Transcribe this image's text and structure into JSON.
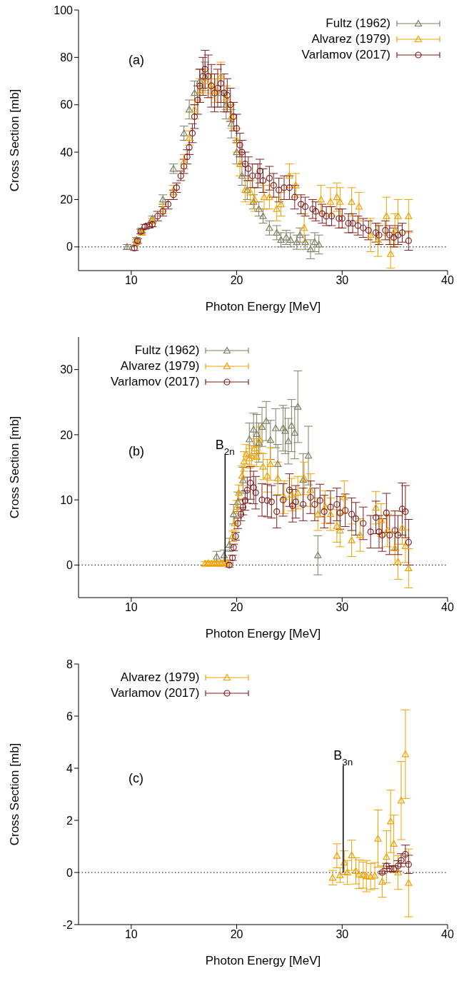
{
  "chart_data": [
    {
      "type": "scatter",
      "xlabel": "Photon Energy [MeV]",
      "ylabel": "Cross Section [mb]",
      "xlim": [
        5,
        40
      ],
      "xticks": [
        10,
        20,
        30,
        40
      ],
      "ylim": [
        -10,
        100
      ],
      "yticks": [
        0,
        20,
        40,
        60,
        80,
        100
      ],
      "legend": "top right",
      "annotations": [
        "(a)"
      ],
      "ref_lines": [
        {
          "axis": "y",
          "value": 0,
          "line_style": "dotted",
          "color": "#000000"
        }
      ],
      "series": [
        {
          "name": "Fultz (1962)",
          "color": "#7d8063",
          "marker": "triangle",
          "x": [
            9.6,
            10.5,
            11,
            12,
            13,
            14,
            15,
            15.5,
            16,
            16.5,
            17,
            17.5,
            18,
            18.5,
            19,
            19.5,
            20,
            20.5,
            21,
            21.6,
            22.1,
            22.5,
            23.1,
            23.8,
            24.2,
            24.7,
            25.1,
            25.7,
            26,
            26.5,
            27,
            27.4,
            27.8
          ],
          "values": [
            0,
            3,
            7,
            12,
            20,
            33,
            48,
            58,
            65,
            70,
            72,
            null,
            null,
            65,
            60,
            52,
            40,
            30,
            24,
            19,
            16,
            13,
            8,
            6,
            3,
            4,
            3,
            2,
            5,
            2,
            -1,
            2,
            1
          ],
          "errors": [
            1,
            1,
            1,
            1,
            2,
            2,
            3,
            4,
            5,
            5,
            6,
            null,
            null,
            6,
            6,
            6,
            5,
            4,
            4,
            3,
            3,
            3,
            3,
            3,
            3,
            3,
            3,
            3,
            3,
            3,
            4,
            4,
            4
          ]
        },
        {
          "name": "Alvarez (1979)",
          "color": "#f0a000",
          "marker": "triangle",
          "x": [
            10.5,
            11,
            12,
            13,
            14,
            15,
            15.5,
            16,
            16.5,
            17,
            17.5,
            18,
            18.5,
            19,
            19.5,
            20,
            20.3,
            20.8,
            21.3,
            21.7,
            22.6,
            23.1,
            23.8,
            24.2,
            25,
            25.6,
            26.4,
            28,
            28.9,
            29.5,
            29.8,
            30.9,
            31.6,
            32.7,
            33.4,
            34.2,
            34.6,
            35,
            35.3,
            36.3
          ],
          "values": [
            2,
            6,
            11,
            16,
            24,
            36,
            46,
            58,
            66,
            70,
            68,
            66,
            72,
            63,
            55,
            45,
            35,
            24,
            23,
            20,
            21,
            21,
            16,
            18,
            30,
            26,
            8,
            20,
            19,
            21,
            19,
            19,
            17,
            5,
            3,
            13,
            -3,
            7,
            13,
            13
          ],
          "errors": [
            1,
            1,
            1,
            2,
            2,
            3,
            3,
            4,
            5,
            5,
            5,
            5,
            6,
            5,
            5,
            5,
            5,
            5,
            5,
            5,
            5,
            5,
            5,
            5,
            5,
            5,
            6,
            6,
            6,
            6,
            6,
            6,
            6,
            7,
            7,
            8,
            6,
            7,
            7,
            7
          ]
        },
        {
          "name": "Varlamov (2017)",
          "color": "#7f1f1f",
          "marker": "circle",
          "x": [
            10.3,
            10.6,
            10.9,
            11.3,
            11.7,
            12,
            12.5,
            13,
            13.5,
            14,
            14.3,
            14.7,
            15,
            15.3,
            15.5,
            15.8,
            16,
            16.3,
            16.5,
            16.8,
            17,
            17.3,
            17.6,
            17.9,
            18.2,
            18.5,
            18.8,
            19.1,
            19.4,
            19.7,
            20,
            20.3,
            20.5,
            20.8,
            21.1,
            21.5,
            22,
            22.2,
            22.5,
            23.1,
            23.5,
            24,
            24.5,
            25,
            25.5,
            26.1,
            26.5,
            27.2,
            27.5,
            28.1,
            28.5,
            29,
            29.7,
            30,
            30.6,
            31,
            31.5,
            32,
            32.5,
            33.2,
            33.5,
            34.1,
            34.5,
            34.9,
            35.3,
            35.7,
            36.3
          ],
          "values": [
            -0.5,
            2.5,
            6.5,
            8.5,
            9,
            9.5,
            13,
            15,
            18,
            22,
            25,
            30,
            34,
            38,
            42,
            48,
            55,
            62,
            68,
            72,
            75,
            72,
            68,
            65,
            67,
            69,
            65,
            64,
            60,
            55,
            50,
            43,
            40,
            35,
            33,
            30,
            30,
            32,
            28,
            29,
            26,
            24,
            25,
            25,
            21,
            18,
            17,
            16,
            15,
            14,
            13,
            13,
            12,
            12,
            10,
            10,
            9,
            8,
            7,
            6,
            5,
            7,
            5,
            4,
            5,
            6,
            2.6
          ],
          "errors": [
            1,
            1,
            1,
            1,
            1,
            1,
            2,
            2,
            2,
            2,
            2,
            2,
            3,
            3,
            3,
            4,
            5,
            6,
            7,
            8,
            8,
            9,
            9,
            8,
            8,
            8,
            8,
            7,
            7,
            6,
            6,
            5,
            5,
            5,
            5,
            5,
            5,
            5,
            5,
            5,
            5,
            5,
            5,
            5,
            5,
            4,
            4,
            4,
            4,
            4,
            4,
            4,
            4,
            4,
            4,
            4,
            4,
            4,
            4,
            4,
            4,
            4,
            4,
            4,
            4,
            4,
            4
          ]
        }
      ]
    },
    {
      "type": "scatter",
      "xlabel": "Photon Energy [MeV]",
      "ylabel": "Cross Section [mb]",
      "xlim": [
        5,
        40
      ],
      "xticks": [
        10,
        20,
        30,
        40
      ],
      "ylim": [
        -5,
        35
      ],
      "yticks": [
        0,
        10,
        20,
        30
      ],
      "legend": "top left",
      "annotations": [
        "(b)",
        {
          "text": "B$_{2n}$",
          "x": 18.9,
          "y": 0.5
        }
      ],
      "ref_lines": [
        {
          "axis": "y",
          "value": 0,
          "line_style": "dotted",
          "color": "#000000"
        }
      ],
      "series": [
        {
          "name": "Fultz (1962)",
          "color": "#7d8063",
          "marker": "triangle",
          "x": [
            18.1,
            18.8,
            19.3,
            19.7,
            20.1,
            20.6,
            21.2,
            21.6,
            21.9,
            22.1,
            22.4,
            22.8,
            23.2,
            23.7,
            23.9,
            24.4,
            24.6,
            24.9,
            25.2,
            25.5,
            25.8,
            26.3,
            26.8,
            27.7
          ],
          "values": [
            1.3,
            1.5,
            3.1,
            7.8,
            9.7,
            13,
            19.3,
            20.8,
            20.1,
            18.8,
            21.2,
            22.1,
            19.2,
            21,
            15.5,
            21,
            20.6,
            19,
            21.4,
            20.3,
            24.3,
            13.1,
            16.8,
            1.5
          ],
          "errors": [
            0.8,
            0.8,
            1,
            1.5,
            1.5,
            2,
            2.5,
            2.5,
            3,
            3,
            3,
            3,
            3,
            3,
            3,
            3.5,
            3.5,
            3.5,
            4,
            4,
            5.5,
            4,
            4.5,
            3
          ]
        },
        {
          "name": "Alvarez (1979)",
          "color": "#f0a000",
          "marker": "triangle",
          "x": [
            17,
            17.3,
            17.6,
            17.9,
            18.2,
            18.5,
            18.8,
            19.1,
            19.6,
            19.8,
            20,
            20.2,
            20.5,
            20.7,
            20.9,
            21.2,
            21.4,
            21.7,
            21.9,
            22.2,
            22.5,
            22.9,
            23.2,
            23.9,
            24.5,
            25.2,
            25.8,
            26.4,
            27,
            27.7,
            28.4,
            28.9,
            29.5,
            29.8,
            30.2,
            30.9,
            31.7,
            33.2,
            33.7,
            34.3,
            35,
            35.3,
            35.7,
            36,
            36.3
          ],
          "values": [
            0.2,
            0.3,
            0.2,
            0.3,
            0.2,
            0.3,
            0.2,
            0.4,
            4.4,
            6.4,
            8.9,
            11.1,
            13.7,
            15.9,
            17,
            16.4,
            16.8,
            17.9,
            16.6,
            19.2,
            15.1,
            13.7,
            15.5,
            13.3,
            10.4,
            10.8,
            11.1,
            13.3,
            11.5,
            7.8,
            8.9,
            7.8,
            6,
            5.3,
            10.4,
            3.8,
            4.6,
            8.8,
            6.9,
            5.3,
            2.6,
            0.5,
            5.7,
            2.9,
            -0.5
          ],
          "errors": [
            0.3,
            0.3,
            0.3,
            0.3,
            0.3,
            0.3,
            0.3,
            0.4,
            0.8,
            1,
            1,
            1.2,
            1.5,
            1.5,
            1.5,
            1.5,
            1.5,
            1.5,
            1.5,
            2,
            2,
            2.5,
            2.5,
            2.5,
            2.5,
            2.5,
            2.5,
            2.5,
            2.5,
            2.5,
            2.5,
            2.5,
            2.5,
            2.5,
            2.5,
            2.5,
            2.5,
            2.5,
            2.5,
            2.5,
            2.5,
            2.7,
            2.5,
            2.5,
            3
          ]
        },
        {
          "name": "Varlamov (2017)",
          "color": "#7f1f1f",
          "marker": "circle",
          "x": [
            19.3,
            19.6,
            19.7,
            19.9,
            20.1,
            20.4,
            20.6,
            20.8,
            21,
            21.3,
            21.6,
            21.8,
            22.4,
            22.9,
            23.3,
            23.8,
            24.4,
            25,
            25.3,
            25.6,
            26.3,
            27,
            27.4,
            27.9,
            28.3,
            28.9,
            29.5,
            29.8,
            30.3,
            30.9,
            31.3,
            32,
            32.7,
            33.2,
            33.5,
            33.8,
            34.2,
            34.5,
            35,
            35.3,
            35.7,
            36,
            36.3
          ],
          "values": [
            0,
            1.1,
            2.7,
            4.4,
            6.4,
            7.8,
            8.9,
            9.9,
            11.5,
            12.6,
            11.9,
            11.1,
            10,
            9.9,
            9.7,
            8.2,
            10,
            11.5,
            9.1,
            9.7,
            9.3,
            10.4,
            9.3,
            9.9,
            8.2,
            8.9,
            9.3,
            8,
            8.4,
            7.8,
            7.1,
            6.4,
            5.1,
            7.3,
            5.1,
            4.6,
            8,
            4.6,
            5.3,
            4.6,
            8.6,
            8.2,
            3.5
          ],
          "errors": [
            0.3,
            0.4,
            0.5,
            0.6,
            0.8,
            1,
            1.2,
            1.5,
            2,
            2.5,
            2.5,
            2.5,
            2.5,
            2.5,
            2.5,
            2.5,
            2.5,
            2.5,
            2.5,
            2.5,
            2.5,
            2.5,
            2.5,
            2.5,
            2.5,
            2.5,
            2.5,
            2.5,
            2.5,
            2.5,
            2.5,
            2.5,
            2.5,
            2.5,
            2.5,
            2.5,
            3,
            3,
            3,
            3,
            4,
            4,
            3.5
          ]
        }
      ]
    },
    {
      "type": "scatter",
      "xlabel": "Photon Energy [MeV]",
      "ylabel": "Cross Section [mb]",
      "xlim": [
        5,
        40
      ],
      "xticks": [
        10,
        20,
        30,
        40
      ],
      "ylim": [
        -2,
        8
      ],
      "yticks": [
        -2,
        0,
        2,
        4,
        6,
        8
      ],
      "legend": "top left",
      "annotations": [
        "(c)",
        {
          "text": "B$_{3n}$",
          "x": 30.1,
          "y": 0
        }
      ],
      "ref_lines": [
        {
          "axis": "y",
          "value": 0,
          "line_style": "dotted",
          "color": "#000000"
        }
      ],
      "series": [
        {
          "name": "Alvarez (1979)",
          "color": "#f0a000",
          "marker": "triangle",
          "x": [
            29.1,
            29.5,
            29.8,
            30.2,
            30.5,
            30.9,
            31.3,
            31.6,
            32,
            32.3,
            32.7,
            33.1,
            33.4,
            33.8,
            34.2,
            34.6,
            34.9,
            35.3,
            35.6,
            36,
            36.3
          ],
          "values": [
            -0.2,
            0.64,
            -0.1,
            0.38,
            0,
            0.66,
            0.06,
            -0.07,
            -0.1,
            -0.14,
            -0.16,
            -0.12,
            1.3,
            -0.35,
            0.6,
            1.96,
            1.1,
            0,
            2.76,
            4.54,
            -0.4
          ],
          "errors": [
            0.28,
            0.46,
            0.28,
            0.45,
            0.46,
            0.58,
            0.5,
            0.55,
            0.5,
            0.6,
            0.5,
            0.5,
            1.1,
            0.6,
            1,
            1.2,
            1.1,
            0.65,
            1.5,
            1.7,
            1.3
          ]
        },
        {
          "name": "Varlamov (2017)",
          "color": "#7f1f1f",
          "marker": "circle",
          "x": [
            33.8,
            34.2,
            34.5,
            34.9,
            35.3,
            35.6,
            36,
            36.3
          ],
          "values": [
            0,
            0.25,
            0.14,
            0.14,
            0.25,
            0.47,
            0.7,
            0.31
          ],
          "errors": [
            0.05,
            0.1,
            0.1,
            0.12,
            0.2,
            0.25,
            0.35,
            0.35
          ]
        }
      ]
    }
  ]
}
